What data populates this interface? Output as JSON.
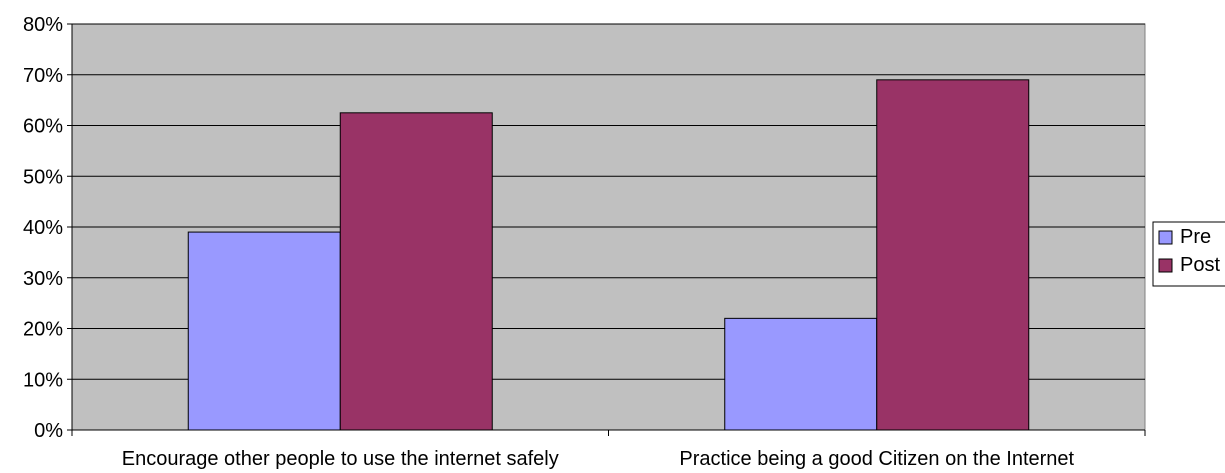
{
  "chart_data": {
    "type": "bar",
    "categories": [
      "Encourage other people to use the internet safely",
      "Practice being a good Citizen on the Internet"
    ],
    "series": [
      {
        "name": "Pre",
        "values": [
          39,
          22
        ],
        "color": "#9999ff"
      },
      {
        "name": "Post",
        "values": [
          62.5,
          69
        ],
        "color": "#993366"
      }
    ],
    "ylim": [
      0,
      80
    ],
    "yticks": [
      0,
      10,
      20,
      30,
      40,
      50,
      60,
      70,
      80
    ],
    "ytick_labels": [
      "0%",
      "10%",
      "20%",
      "30%",
      "40%",
      "50%",
      "60%",
      "70%",
      "80%"
    ],
    "plot_background": "#c0c0c0",
    "grid": true,
    "legend_position": "right"
  }
}
